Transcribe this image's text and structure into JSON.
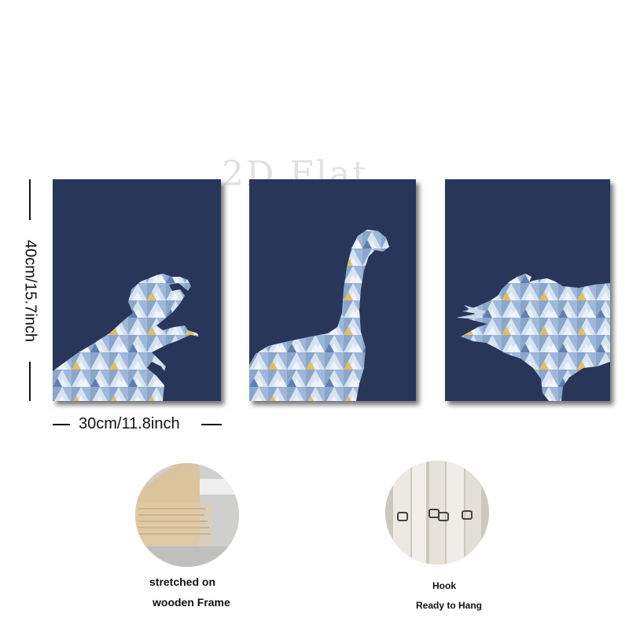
{
  "watermark": "2D Flat",
  "dimensions": {
    "height_label": "40cm/15.7inch",
    "width_label": "30cm/11.8inch"
  },
  "panels": [
    {
      "subject": "t-rex-silhouette"
    },
    {
      "subject": "brachiosaurus-silhouette"
    },
    {
      "subject": "triceratops-silhouette"
    }
  ],
  "features": {
    "frame_caption_line1": "stretched on",
    "frame_caption_line2": "wooden Frame",
    "hook_caption_line1": "Hook",
    "hook_caption_line2": "Ready to Hang"
  },
  "colors": {
    "panel_background": "#273659",
    "mosaic_light": "#c8d8ea",
    "mosaic_blue": "#7f9cc4",
    "mosaic_accent": "#e4b64b"
  }
}
